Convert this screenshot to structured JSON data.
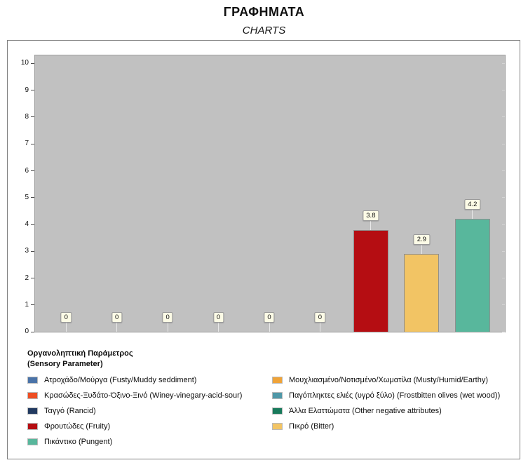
{
  "header": {
    "title": "ΓΡΑΦΗΜΑΤΑ",
    "subtitle": "CHARTS"
  },
  "legend": {
    "title_el": "Οργανοληπτική Παράμετρος",
    "title_en": "(Sensory Parameter)"
  },
  "chart_data": {
    "type": "bar",
    "title": "ΓΡΑΦΗΜΑΤΑ (CHARTS)",
    "xlabel": "Οργανοληπτική Παράμετρος (Sensory Parameter)",
    "ylabel": "",
    "ylim": [
      0,
      10.3
    ],
    "yticks": [
      0,
      1,
      2,
      3,
      4,
      5,
      6,
      7,
      8,
      9,
      10
    ],
    "grid": false,
    "plot_background": "#c1c1c1",
    "label_box_background": "#fcfbe6",
    "legend_position": "bottom, two columns",
    "data_labels": [
      "0",
      "0",
      "0",
      "0",
      "0",
      "0",
      "3.8",
      "2.9",
      "4.2"
    ],
    "series": [
      {
        "label": "Ατροχάδο/Μούργα (Fusty/Muddy seddiment)",
        "color": "#4a73a8",
        "value": 0
      },
      {
        "label": "Μουχλιασμένο/Νοτισμένο/Χωματίλα (Musty/Humid/Earthy)",
        "color": "#efa338",
        "value": 0
      },
      {
        "label": "Κρασώδες-Ξυδάτο-Όξινο-Ξινό (Winey-vinegary-acid-sour)",
        "color": "#ee4e23",
        "value": 0
      },
      {
        "label": "Παγόπληκτες ελιές (υγρό ξύλο) (Frostbitten olives (wet wood))",
        "color": "#4f98a8",
        "value": 0
      },
      {
        "label": "Ταγγό (Rancid)",
        "color": "#223a60",
        "value": 0
      },
      {
        "label": "Άλλα Ελαττώματα (Other negative attributes)",
        "color": "#187a5b",
        "value": 0
      },
      {
        "label": "Φρουτώδες (Fruity)",
        "color": "#b50d12",
        "value": 3.8
      },
      {
        "label": "Πικρό (Bitter)",
        "color": "#f2c464",
        "value": 2.9
      },
      {
        "label": "Πικάντικο (Pungent)",
        "color": "#58b79c",
        "value": 4.2
      }
    ]
  }
}
